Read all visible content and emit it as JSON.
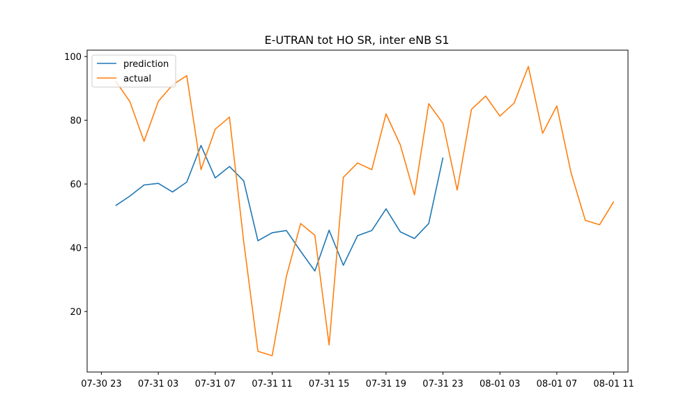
{
  "chart_data": {
    "type": "line",
    "title": "E-UTRAN tot HO SR, inter eNB S1",
    "xlabel": "",
    "ylabel": "",
    "legend_position": "upper-left",
    "grid": false,
    "x_start": "07-30 23",
    "x_step_hours": 1,
    "xlim": [
      "07-30 22",
      "08-01 12"
    ],
    "ylim": [
      1,
      102
    ],
    "x_ticks": [
      "07-30 23",
      "07-31 03",
      "07-31 07",
      "07-31 11",
      "07-31 15",
      "07-31 19",
      "07-31 23",
      "08-01 03",
      "08-01 07",
      "08-01 11"
    ],
    "y_ticks": [
      20,
      40,
      60,
      80,
      100
    ],
    "series": [
      {
        "name": "prediction",
        "color": "#1f77b4",
        "x": [
          "07-31 00",
          "07-31 01",
          "07-31 02",
          "07-31 03",
          "07-31 04",
          "07-31 05",
          "07-31 06",
          "07-31 07",
          "07-31 08",
          "07-31 09",
          "07-31 10",
          "07-31 11",
          "07-31 12",
          "07-31 13",
          "07-31 14",
          "07-31 15",
          "07-31 16",
          "07-31 17",
          "07-31 18",
          "07-31 19",
          "07-31 20",
          "07-31 21",
          "07-31 22",
          "07-31 23"
        ],
        "values": [
          53.2,
          56.2,
          59.7,
          60.2,
          57.5,
          60.6,
          72.1,
          61.9,
          65.5,
          61.0,
          42.2,
          44.7,
          45.4,
          38.9,
          32.7,
          45.5,
          34.5,
          43.8,
          45.4,
          52.2,
          45.0,
          42.9,
          47.6,
          68.3
        ]
      },
      {
        "name": "actual",
        "color": "#ff7f0e",
        "x": [
          "07-31 00",
          "07-31 01",
          "07-31 02",
          "07-31 03",
          "07-31 04",
          "07-31 05",
          "07-31 06",
          "07-31 07",
          "07-31 08",
          "07-31 09",
          "07-31 10",
          "07-31 11",
          "07-31 12",
          "07-31 13",
          "07-31 14",
          "07-31 15",
          "07-31 16",
          "07-31 17",
          "07-31 18",
          "07-31 19",
          "07-31 20",
          "07-31 21",
          "07-31 22",
          "07-31 23",
          "08-01 00",
          "08-01 01",
          "08-01 02",
          "08-01 03",
          "08-01 04",
          "08-01 05",
          "08-01 06",
          "08-01 07",
          "08-01 08",
          "08-01 09",
          "08-01 10",
          "08-01 11"
        ],
        "values": [
          92.3,
          85.9,
          73.4,
          85.9,
          91.1,
          94.0,
          64.5,
          77.2,
          81.0,
          42.0,
          7.5,
          6.1,
          31.0,
          47.6,
          43.9,
          9.5,
          62.1,
          66.6,
          64.5,
          82.0,
          72.3,
          56.6,
          85.2,
          79.0,
          58.1,
          83.4,
          87.6,
          81.3,
          85.4,
          96.9,
          75.9,
          84.5,
          63.5,
          48.6,
          47.2,
          54.5
        ]
      }
    ]
  }
}
